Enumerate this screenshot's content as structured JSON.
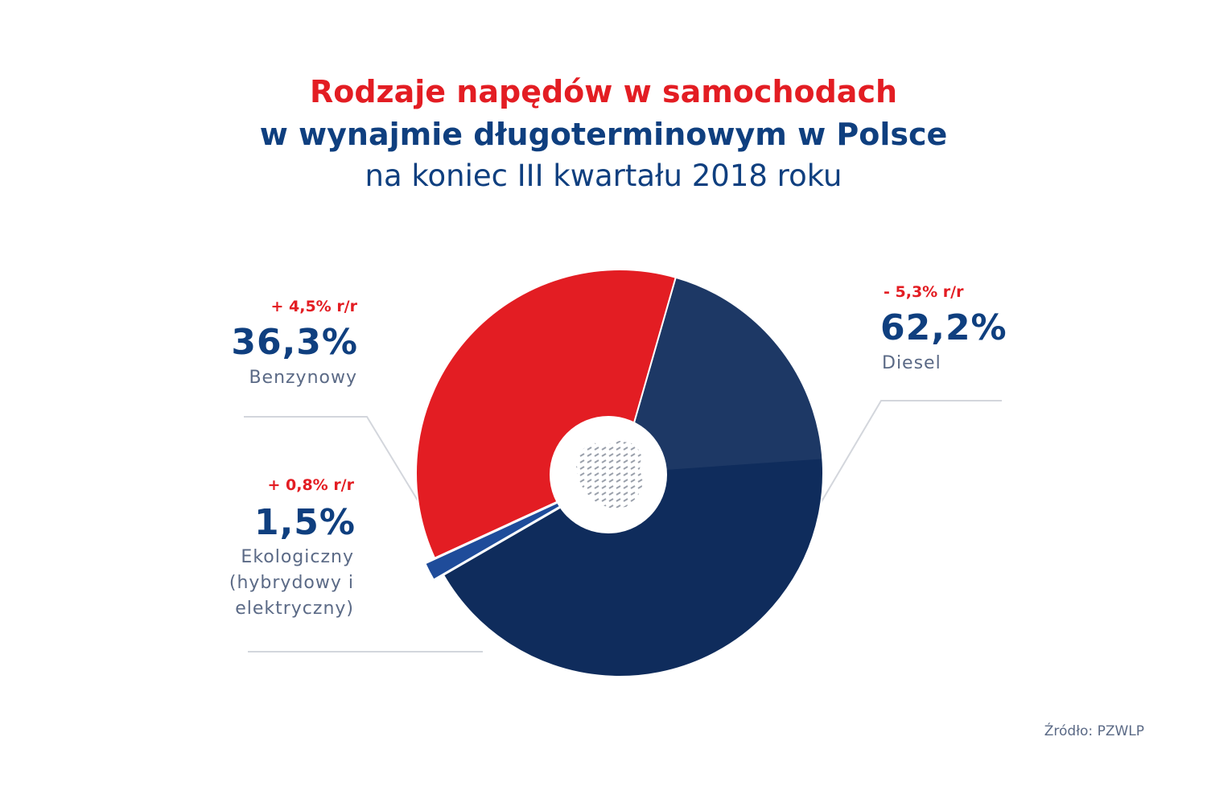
{
  "title_line1": "Rodzaje napędów w samochodach",
  "title_line2": "w wynajmie długoterminowym w Polsce",
  "title_line3": "na koniec III kwartału 2018 roku",
  "source": "Źródło: PZWLP",
  "colors": {
    "red": "#e31d23",
    "navy": "#0f2c5c",
    "eco": "#1f4c9a",
    "leader_line": "#d3d6dc"
  },
  "labels": {
    "benzyna": {
      "change": "+ 4,5% r/r",
      "pct": "36,3%",
      "name": "Benzynowy"
    },
    "eko": {
      "change": "+ 0,8% r/r",
      "pct": "1,5%",
      "name_line1": "Ekologiczny",
      "name_line2": "(hybrydowy i",
      "name_line3": "elektryczny)"
    },
    "diesel": {
      "change": "- 5,3% r/r",
      "pct": "62,2%",
      "name": "Diesel"
    }
  },
  "chart_data": {
    "type": "pie",
    "title": "Rodzaje napędów w samochodach w wynajmie długoterminowym w Polsce na koniec III kwartału 2018 roku",
    "slices": [
      {
        "label": "Diesel",
        "value": 62.2,
        "change": "- 5,3% r/r",
        "color": "#0f2c5c"
      },
      {
        "label": "Ekologiczny (hybrydowy i elektryczny)",
        "value": 1.5,
        "change": "+ 0,8% r/r",
        "color": "#1f4c9a"
      },
      {
        "label": "Benzynowy",
        "value": 36.3,
        "change": "+ 4,5% r/r",
        "color": "#e31d23"
      }
    ],
    "center_icon": "poland-map-icon"
  }
}
